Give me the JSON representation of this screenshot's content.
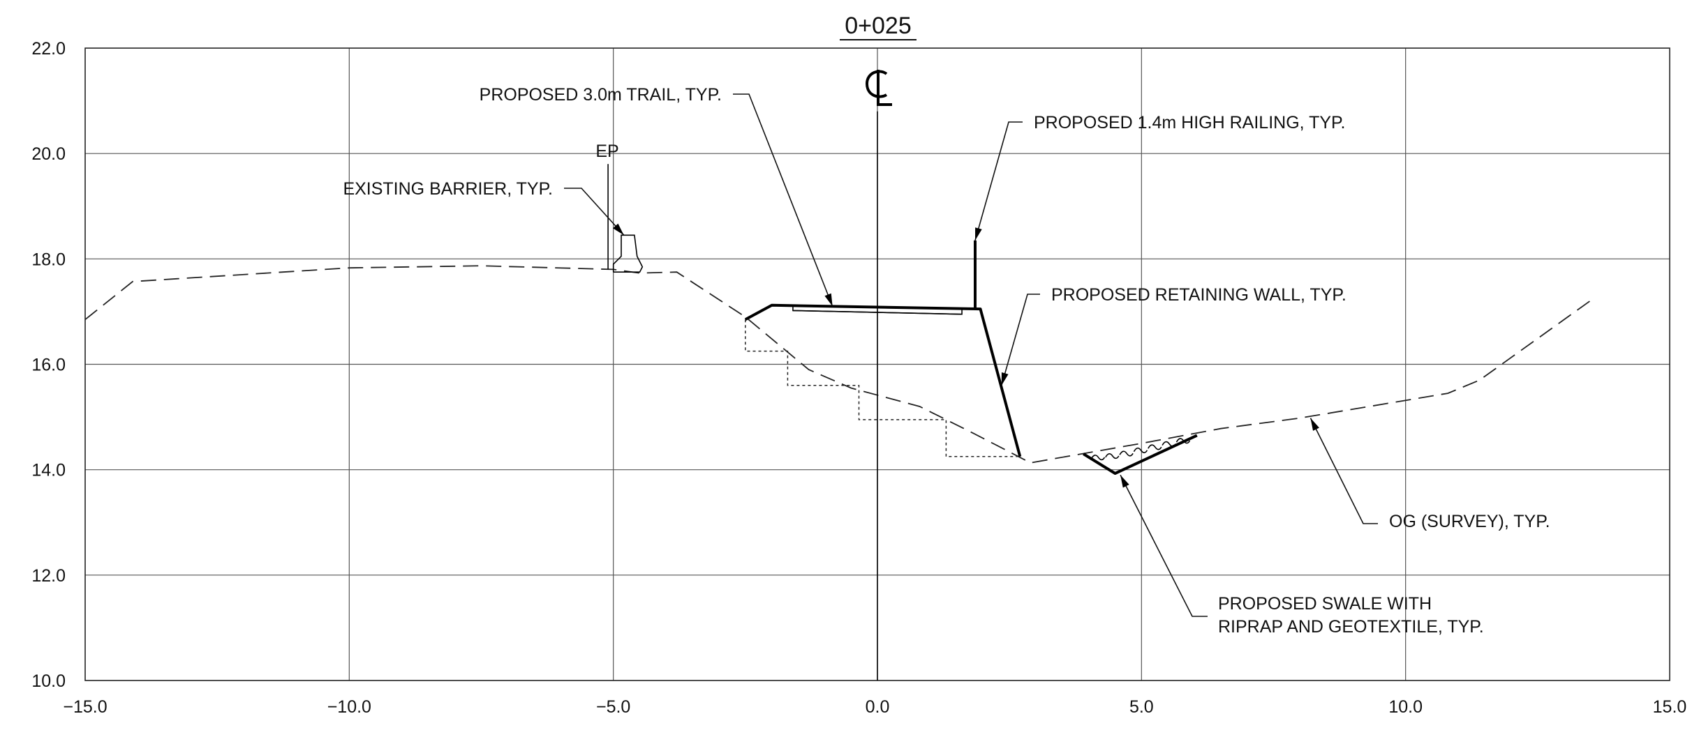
{
  "station": "0+025",
  "centerline_symbol": "CL",
  "chart_data": {
    "type": "line",
    "xlim": [
      -15.0,
      15.0
    ],
    "ylim": [
      10.0,
      22.0
    ],
    "grid": true,
    "x_ticks": [
      -15,
      -10,
      -5,
      0,
      5,
      10,
      15
    ],
    "y_ticks": [
      10,
      12,
      14,
      16,
      18,
      20,
      22
    ],
    "x_tick_labels": [
      "−15.0",
      "−10.0",
      "−5.0",
      "0.0",
      "5.0",
      "10.0",
      "15.0"
    ],
    "y_tick_labels": [
      "10.0",
      "12.0",
      "14.0",
      "16.0",
      "18.0",
      "20.0",
      "22.0"
    ],
    "series": [
      {
        "key": "og",
        "name": "OG (SURVEY), TYP.",
        "points": [
          [
            -15.0,
            16.85
          ],
          [
            -14.1,
            17.57
          ],
          [
            -10.0,
            17.83
          ],
          [
            -7.5,
            17.87
          ],
          [
            -5.0,
            17.8
          ],
          [
            -4.5,
            17.73
          ],
          [
            -3.8,
            17.75
          ],
          [
            -2.5,
            16.9
          ],
          [
            -1.3,
            15.9
          ],
          [
            -0.5,
            15.55
          ],
          [
            0.8,
            15.2
          ],
          [
            1.8,
            14.7
          ],
          [
            2.9,
            14.13
          ],
          [
            5.0,
            14.5
          ],
          [
            6.5,
            14.78
          ],
          [
            8.0,
            14.98
          ],
          [
            10.8,
            15.45
          ],
          [
            11.4,
            15.7
          ],
          [
            13.6,
            17.28
          ]
        ]
      },
      {
        "key": "benching",
        "points": [
          [
            -2.5,
            16.85
          ],
          [
            -2.5,
            16.25
          ],
          [
            -1.7,
            16.25
          ],
          [
            -1.7,
            15.6
          ],
          [
            -0.35,
            15.6
          ],
          [
            -0.35,
            14.95
          ],
          [
            1.3,
            14.95
          ],
          [
            1.3,
            14.25
          ],
          [
            2.7,
            14.25
          ]
        ]
      },
      {
        "key": "trail_wall",
        "points": [
          [
            -2.5,
            16.85
          ],
          [
            -2.0,
            17.12
          ],
          [
            1.95,
            17.05
          ],
          [
            2.7,
            14.25
          ]
        ]
      },
      {
        "key": "trail_inner",
        "points": [
          [
            -1.6,
            17.02
          ],
          [
            1.6,
            16.95
          ]
        ]
      },
      {
        "key": "railing",
        "points": [
          [
            1.85,
            17.07
          ],
          [
            1.85,
            18.35
          ]
        ]
      },
      {
        "key": "swale",
        "points": [
          [
            3.9,
            14.3
          ],
          [
            4.5,
            13.93
          ],
          [
            6.05,
            14.65
          ]
        ]
      },
      {
        "key": "barrier",
        "points": [
          [
            -5.0,
            17.75
          ],
          [
            -5.0,
            17.9
          ],
          [
            -4.85,
            18.05
          ],
          [
            -4.85,
            18.45
          ],
          [
            -4.6,
            18.45
          ],
          [
            -4.55,
            18.05
          ],
          [
            -4.45,
            17.85
          ],
          [
            -4.5,
            17.75
          ],
          [
            -5.0,
            17.75
          ]
        ]
      },
      {
        "key": "centerline",
        "points": [
          [
            0.0,
            10.0
          ],
          [
            0.0,
            20.8
          ]
        ]
      },
      {
        "key": "ep_line",
        "points": [
          [
            -5.1,
            17.8
          ],
          [
            -5.1,
            19.8
          ]
        ]
      }
    ],
    "annotations": [
      {
        "key": "ep",
        "lines": [
          "EP"
        ]
      },
      {
        "key": "barrier",
        "lines": [
          "EXISTING BARRIER, TYP."
        ],
        "target": [
          -4.8,
          18.45
        ]
      },
      {
        "key": "trail",
        "lines": [
          "PROPOSED 3.0m TRAIL, TYP."
        ],
        "target": [
          -0.85,
          17.1
        ]
      },
      {
        "key": "railing",
        "lines": [
          "PROPOSED 1.4m HIGH RAILING, TYP."
        ],
        "target": [
          1.85,
          18.35
        ]
      },
      {
        "key": "wall",
        "lines": [
          "PROPOSED RETAINING WALL, TYP."
        ],
        "target": [
          2.35,
          15.6
        ]
      },
      {
        "key": "og",
        "lines": [
          "OG (SURVEY), TYP."
        ],
        "target": [
          8.2,
          14.98
        ]
      },
      {
        "key": "swale",
        "lines": [
          "PROPOSED SWALE WITH",
          "RIPRAP AND GEOTEXTILE, TYP."
        ],
        "target": [
          4.6,
          13.9
        ]
      }
    ]
  }
}
